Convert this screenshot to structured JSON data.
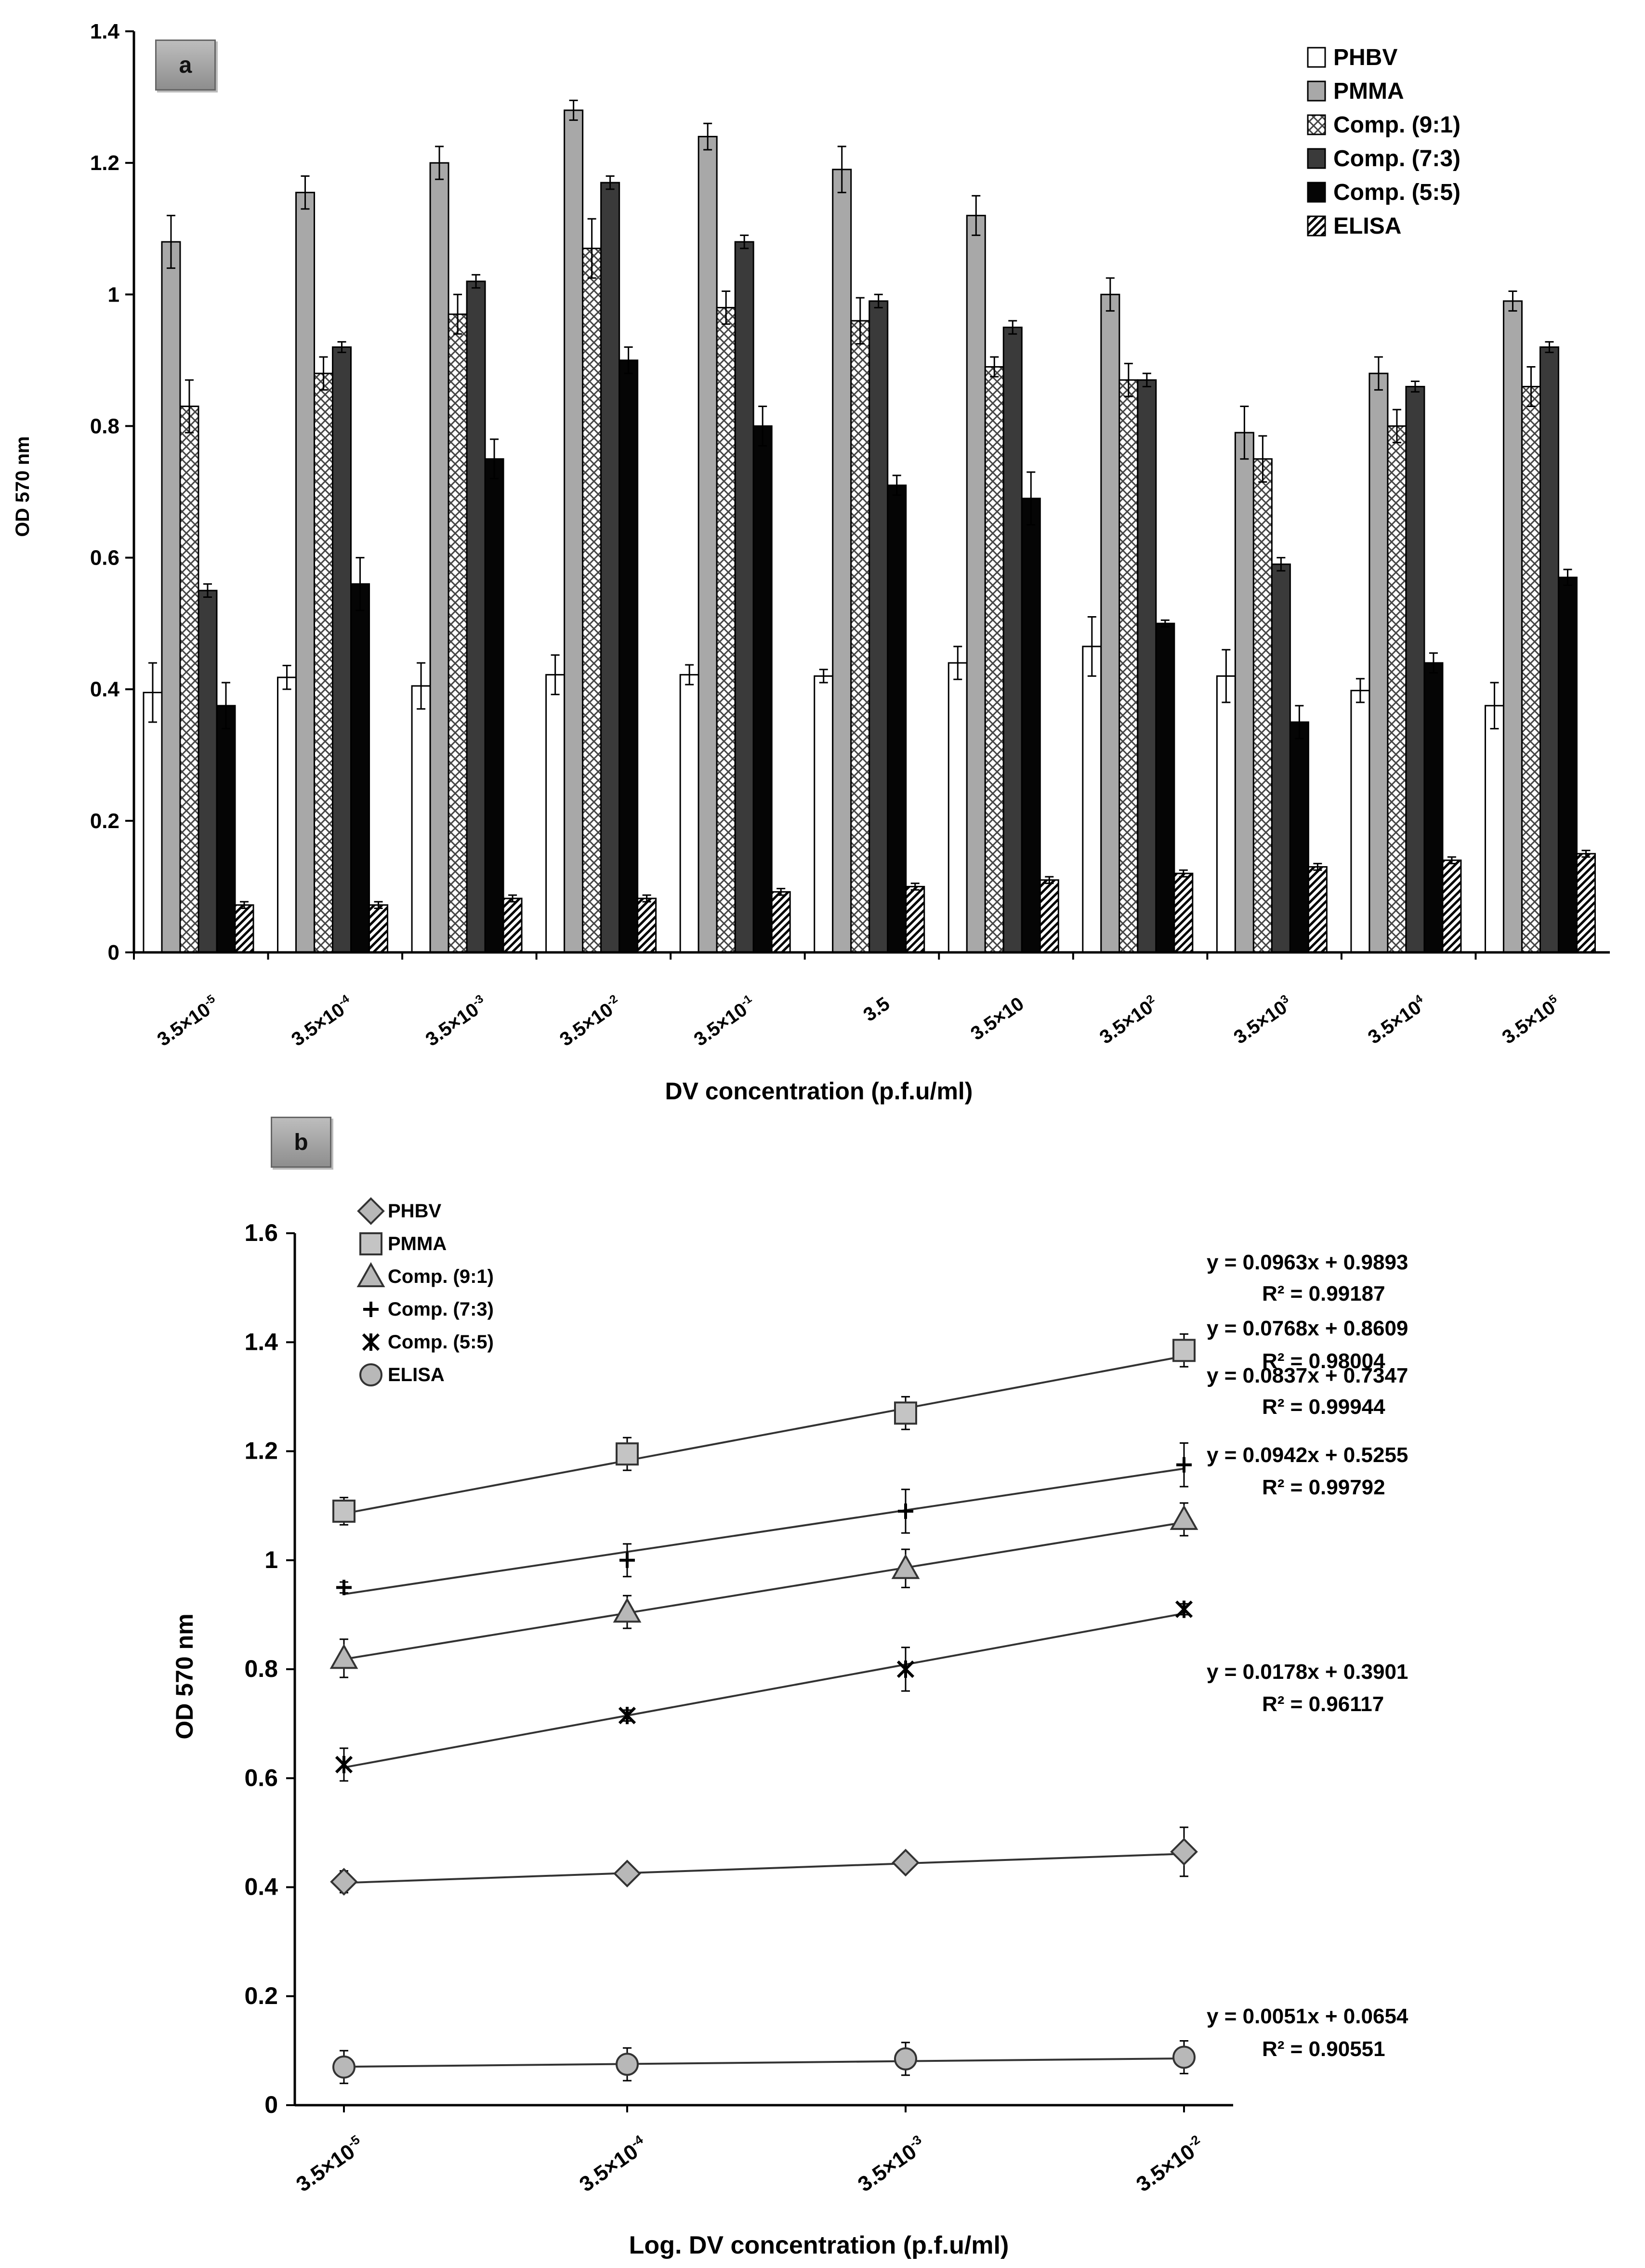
{
  "chart_data": [
    {
      "panel": "a",
      "type": "bar",
      "xlabel": "DV concentration (p.f.u/ml)",
      "ylabel": "OD 570 nm",
      "ylim": [
        0,
        1.4
      ],
      "yticks": [
        "0",
        "0.2",
        "0.4",
        "0.6",
        "0.8",
        "1",
        "1.2",
        "1.4"
      ],
      "categories": [
        {
          "base": "3.5×10",
          "exp": "-5"
        },
        {
          "base": "3.5×10",
          "exp": "-4"
        },
        {
          "base": "3.5×10",
          "exp": "-3"
        },
        {
          "base": "3.5×10",
          "exp": "-2"
        },
        {
          "base": "3.5×10",
          "exp": "-1"
        },
        {
          "base": "3.5",
          "exp": ""
        },
        {
          "base": "3.5×10",
          "exp": ""
        },
        {
          "base": "3.5×10",
          "exp": "2"
        },
        {
          "base": "3.5×10",
          "exp": "3"
        },
        {
          "base": "3.5×10",
          "exp": "4"
        },
        {
          "base": "3.5×10",
          "exp": "5"
        }
      ],
      "series": [
        {
          "name": "PHBV",
          "fill": "white",
          "values": [
            0.395,
            0.418,
            0.405,
            0.422,
            0.422,
            0.42,
            0.44,
            0.465,
            0.42,
            0.398,
            0.375
          ],
          "errors": [
            0.045,
            0.018,
            0.035,
            0.03,
            0.015,
            0.01,
            0.025,
            0.045,
            0.04,
            0.018,
            0.035
          ]
        },
        {
          "name": "PMMA",
          "fill": "gray",
          "values": [
            1.08,
            1.155,
            1.2,
            1.28,
            1.24,
            1.19,
            1.12,
            1.0,
            0.79,
            0.88,
            0.99
          ],
          "errors": [
            0.04,
            0.025,
            0.025,
            0.015,
            0.02,
            0.035,
            0.03,
            0.025,
            0.04,
            0.025,
            0.015
          ]
        },
        {
          "name": "Comp. (9:1)",
          "fill": "crosshatch",
          "values": [
            0.83,
            0.88,
            0.97,
            1.07,
            0.98,
            0.96,
            0.89,
            0.87,
            0.75,
            0.8,
            0.86
          ],
          "errors": [
            0.04,
            0.025,
            0.03,
            0.045,
            0.025,
            0.035,
            0.015,
            0.025,
            0.035,
            0.025,
            0.03
          ]
        },
        {
          "name": "Comp. (7:3)",
          "fill": "darkgray",
          "values": [
            0.55,
            0.92,
            1.02,
            1.17,
            1.08,
            0.99,
            0.95,
            0.87,
            0.59,
            0.86,
            0.92
          ],
          "errors": [
            0.01,
            0.008,
            0.01,
            0.01,
            0.01,
            0.01,
            0.01,
            0.01,
            0.01,
            0.008,
            0.008
          ]
        },
        {
          "name": "Comp. (5:5)",
          "fill": "black",
          "values": [
            0.375,
            0.56,
            0.75,
            0.9,
            0.8,
            0.71,
            0.69,
            0.5,
            0.35,
            0.44,
            0.57
          ],
          "errors": [
            0.035,
            0.04,
            0.03,
            0.02,
            0.03,
            0.015,
            0.04,
            0.005,
            0.025,
            0.015,
            0.012
          ]
        },
        {
          "name": "ELISA",
          "fill": "hatch",
          "values": [
            0.072,
            0.072,
            0.082,
            0.082,
            0.092,
            0.1,
            0.11,
            0.12,
            0.13,
            0.14,
            0.15
          ],
          "errors": [
            0.005,
            0.005,
            0.005,
            0.005,
            0.005,
            0.005,
            0.005,
            0.005,
            0.005,
            0.005,
            0.005
          ]
        }
      ],
      "legend_position": "top-right"
    },
    {
      "panel": "b",
      "type": "scatter",
      "xlabel": "Log. DV concentration (p.f.u/ml)",
      "ylabel": "OD 570 nm",
      "ylim": [
        0,
        1.6
      ],
      "yticks": [
        "0",
        "0.2",
        "0.4",
        "0.6",
        "0.8",
        "1",
        "1.2",
        "1.4",
        "1.6"
      ],
      "x": [
        1,
        2,
        3,
        4
      ],
      "xticks": [
        {
          "base": "3.5×10",
          "exp": "-5"
        },
        {
          "base": "3.5×10",
          "exp": "-4"
        },
        {
          "base": "3.5×10",
          "exp": "-3"
        },
        {
          "base": "3.5×10",
          "exp": "-2"
        }
      ],
      "series": [
        {
          "name": "PHBV",
          "marker": "diamond",
          "values": [
            0.41,
            0.425,
            0.445,
            0.465
          ],
          "errors": [
            0.02,
            0.01,
            0.015,
            0.045
          ],
          "slope": 0.0178,
          "intercept": 0.3901,
          "equation": "y = 0.0178x + 0.3901",
          "r2": "R² = 0.96117"
        },
        {
          "name": "PMMA",
          "marker": "square",
          "values": [
            1.09,
            1.195,
            1.27,
            1.385
          ],
          "errors": [
            0.025,
            0.03,
            0.03,
            0.03
          ],
          "slope": 0.0963,
          "intercept": 0.9893,
          "equation": "y = 0.0963x + 0.9893",
          "r2": "R² = 0.99187"
        },
        {
          "name": "Comp. (9:1)",
          "marker": "triangle",
          "values": [
            0.82,
            0.905,
            0.985,
            1.075
          ],
          "errors": [
            0.035,
            0.03,
            0.035,
            0.03
          ],
          "slope": 0.0837,
          "intercept": 0.7347,
          "equation": "y = 0.0837x + 0.7347",
          "r2": "R² = 0.99944"
        },
        {
          "name": "Comp. (7:3)",
          "marker": "plus",
          "values": [
            0.95,
            1.0,
            1.09,
            1.175
          ],
          "errors": [
            0.01,
            0.03,
            0.04,
            0.04
          ],
          "slope": 0.0768,
          "intercept": 0.8609,
          "equation": "y = 0.0768x + 0.8609",
          "r2": "R² = 0.98004"
        },
        {
          "name": "Comp. (5:5)",
          "marker": "asterisk",
          "values": [
            0.625,
            0.715,
            0.8,
            0.91
          ],
          "errors": [
            0.03,
            0.01,
            0.04,
            0.01
          ],
          "slope": 0.0942,
          "intercept": 0.5255,
          "equation": "y = 0.0942x + 0.5255",
          "r2": "R² = 0.99792"
        },
        {
          "name": "ELISA",
          "marker": "circle",
          "values": [
            0.07,
            0.075,
            0.085,
            0.088
          ],
          "errors": [
            0.03,
            0.03,
            0.03,
            0.03
          ],
          "slope": 0.0051,
          "intercept": 0.0654,
          "equation": "y = 0.0051x + 0.0654",
          "r2": "R² = 0.90551"
        }
      ],
      "legend_position": "top-left"
    }
  ]
}
